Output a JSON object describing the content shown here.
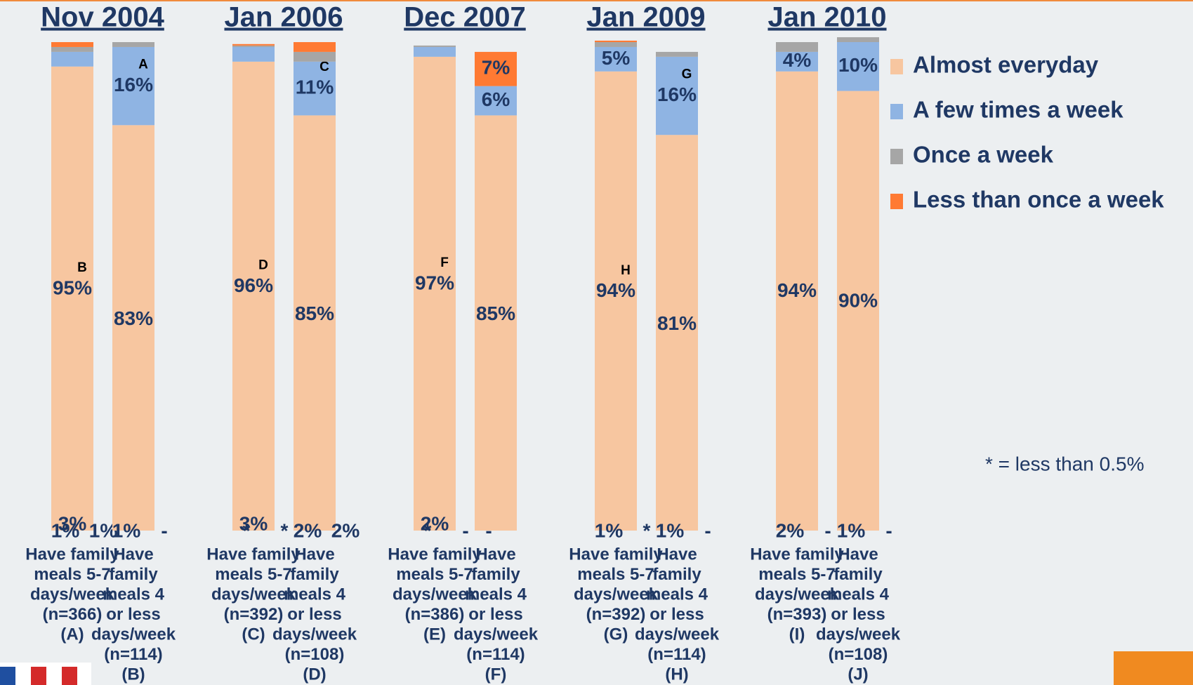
{
  "chart_data": {
    "type": "stacked_bar",
    "groups": [
      "Nov 2004",
      "Jan 2006",
      "Dec 2007",
      "Jan 2009",
      "Jan 2010"
    ],
    "categories": [
      [
        "Have family",
        "meals 5-7",
        "days/week",
        "(n=366)",
        "(A)"
      ],
      [
        "Have",
        "family",
        "meals 4",
        "or less",
        "days/week",
        "(n=114)",
        "(B)"
      ],
      [
        "Have family",
        "meals 5-7",
        "days/week",
        "(n=392)",
        "(C)"
      ],
      [
        "Have",
        "family",
        "meals 4",
        "or less",
        "days/week",
        "(n=108)",
        "(D)"
      ],
      [
        "Have family",
        "meals 5-7",
        "days/week",
        "(n=386)",
        "(E)"
      ],
      [
        "Have",
        "family",
        "meals 4",
        "or less",
        "days/week",
        "(n=114)",
        "(F)"
      ],
      [
        "Have family",
        "meals 5-7",
        "days/week",
        "(n=392)",
        "(G)"
      ],
      [
        "Have",
        "family",
        "meals 4",
        "or less",
        "days/week",
        "(n=114)",
        "(H)"
      ],
      [
        "Have family",
        "meals 5-7",
        "days/week",
        "(n=393)",
        "(I)"
      ],
      [
        "Have",
        "family",
        "meals 4",
        "or less",
        "days/week",
        "(n=108)",
        "(J)"
      ]
    ],
    "series": [
      {
        "name": "Almost everyday",
        "color": "#f7c6a0",
        "values": [
          95,
          83,
          96,
          85,
          97,
          85,
          94,
          81,
          94,
          90
        ],
        "value_labels": [
          "95%",
          "83%",
          "96%",
          "85%",
          "97%",
          "85%",
          "94%",
          "81%",
          "94%",
          "90%"
        ],
        "letters": [
          "B",
          null,
          "D",
          null,
          "F",
          null,
          "H",
          null,
          null,
          null
        ]
      },
      {
        "name": "A few times a week",
        "color": "#8fb4e3",
        "values": [
          3,
          16,
          3,
          11,
          2,
          6,
          5,
          16,
          4,
          10
        ],
        "value_labels": [
          "3%",
          "16%",
          "3%",
          "11%",
          "2%",
          "6%",
          "5%",
          "16%",
          "4%",
          "10%"
        ],
        "letters": [
          null,
          "A",
          null,
          "C",
          null,
          null,
          null,
          "G",
          null,
          null
        ]
      },
      {
        "name": "Once a week",
        "color": "#a6a6a6",
        "values": [
          1,
          1,
          0.3,
          2,
          0.3,
          0,
          1,
          1,
          2,
          1
        ],
        "value_labels": [
          "1%",
          "1%",
          "*",
          "2%",
          "*",
          "-",
          "1%",
          "1%",
          "2%",
          "1%"
        ]
      },
      {
        "name": "Less than once a week",
        "color": "#ff7a33",
        "values": [
          1,
          0,
          0.3,
          2,
          0,
          7,
          0.3,
          0,
          0,
          0
        ],
        "value_labels": [
          "1%",
          "-",
          "*",
          "2%",
          "-",
          "7%",
          "*",
          "-",
          "-",
          "-"
        ]
      }
    ],
    "ylim": [
      0,
      100
    ],
    "legend": "top-right",
    "note": "* = less than 0.5%"
  }
}
